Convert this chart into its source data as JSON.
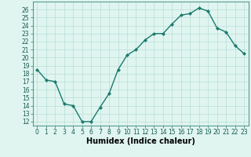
{
  "x": [
    0,
    1,
    2,
    3,
    4,
    5,
    6,
    7,
    8,
    9,
    10,
    11,
    12,
    13,
    14,
    15,
    16,
    17,
    18,
    19,
    20,
    21,
    22,
    23
  ],
  "y": [
    18.5,
    17.2,
    17.0,
    14.2,
    14.0,
    12.0,
    12.0,
    13.8,
    15.5,
    18.5,
    20.3,
    21.0,
    22.2,
    23.0,
    23.0,
    24.2,
    25.3,
    25.5,
    26.2,
    25.8,
    23.7,
    23.2,
    21.5,
    20.5
  ],
  "line_color": "#1a7a6e",
  "marker": "D",
  "marker_size": 2.0,
  "bg_color": "#e0f5f0",
  "grid_color": "#b8ddd6",
  "xlabel": "Humidex (Indice chaleur)",
  "xlim": [
    -0.5,
    23.5
  ],
  "ylim": [
    11.5,
    27
  ],
  "yticks": [
    12,
    13,
    14,
    15,
    16,
    17,
    18,
    19,
    20,
    21,
    22,
    23,
    24,
    25,
    26
  ],
  "xticks": [
    0,
    1,
    2,
    3,
    4,
    5,
    6,
    7,
    8,
    9,
    10,
    11,
    12,
    13,
    14,
    15,
    16,
    17,
    18,
    19,
    20,
    21,
    22,
    23
  ],
  "tick_fontsize": 5.5,
  "xlabel_fontsize": 7.0,
  "linewidth": 1.0
}
